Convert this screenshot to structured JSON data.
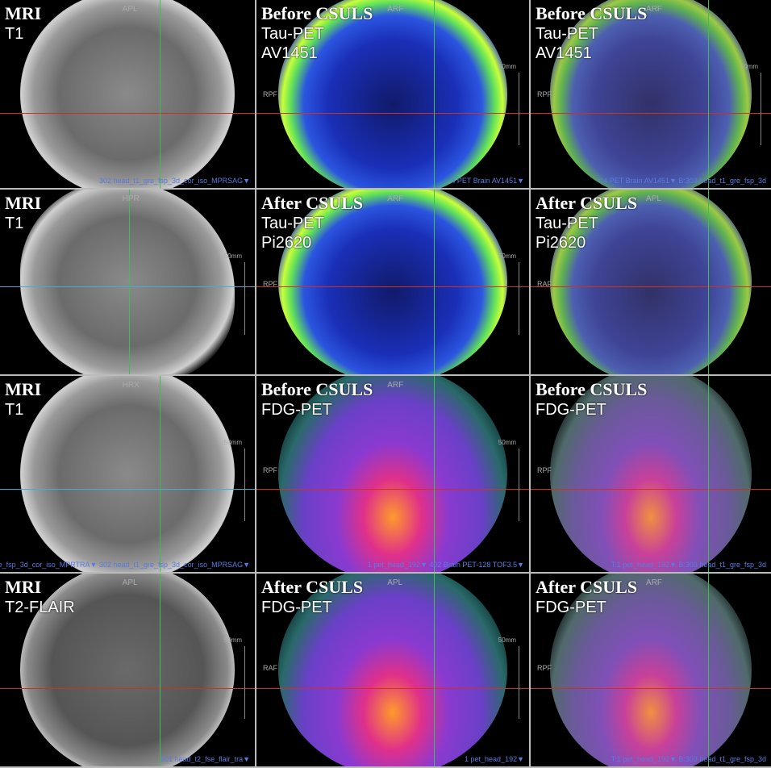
{
  "figure": {
    "rows": [
      {
        "panels": [
          {
            "kind": "mri",
            "title": "MRI",
            "lines": [
              "T1"
            ],
            "orient": "APL",
            "series": "302 head_t1_gre_fsp_3d_cor_iso_MPRSAG▼",
            "hline_color": "#d03020"
          },
          {
            "kind": "tau",
            "title": "Before CSULS",
            "lines": [
              "Tau-PET",
              "AV1451"
            ],
            "orient": "ARF",
            "scale": "50mm",
            "rlab": "RPF",
            "series": "4 PET Brain AV1451▼",
            "hline_color": "#d03020"
          },
          {
            "kind": "tau fuse",
            "title": "Before CSULS",
            "lines": [
              "Tau-PET",
              "AV1451"
            ],
            "orient": "ARF",
            "scale": "50mm",
            "rlab": "RPF",
            "series": "T:4 PET Brain AV1451▼ B:303 head_t1_gre_fsp_3d",
            "hline_color": "#d03020"
          }
        ]
      },
      {
        "panels": [
          {
            "kind": "mri sag",
            "title": "MRI",
            "lines": [
              "T1"
            ],
            "orient": "HPR",
            "scale": "50mm",
            "series": "",
            "hline_color": "#40b0d0"
          },
          {
            "kind": "tau",
            "title": "After CSULS",
            "lines": [
              "Tau-PET",
              "Pi2620"
            ],
            "orient": "ARF",
            "scale": "50mm",
            "rlab": "RPF",
            "series": "",
            "hline_color": "#d03020"
          },
          {
            "kind": "tau fuse",
            "title": "After CSULS",
            "lines": [
              "Tau-PET",
              "Pi2620"
            ],
            "orient": "APL",
            "scale": "",
            "rlab": "RAF",
            "series": "",
            "hline_color": "#d03020"
          }
        ]
      },
      {
        "panels": [
          {
            "kind": "mri",
            "title": "MRI",
            "lines": [
              "T1"
            ],
            "orient": "HRX",
            "scale": "50mm",
            "series": "303 head_t1_gre_fsp_3d_cor_iso_MPRTRA▼ 302 head_t1_gre_fsp_3d_cor_iso_MPRSAG▼",
            "hline_color": "#40b0d0"
          },
          {
            "kind": "fdg",
            "title": "Before CSULS",
            "lines": [
              "FDG-PET"
            ],
            "orient": "ARF",
            "scale": "50mm",
            "rlab": "RPF",
            "series": "1 pet_head_192▼ 402 Brain PET-128 TOF3.5▼",
            "hline_color": "#d03020"
          },
          {
            "kind": "fdg fuse",
            "title": "Before CSULS",
            "lines": [
              "FDG-PET"
            ],
            "orient": "",
            "scale": "",
            "rlab": "RPF",
            "series": "T:1 pet_head_192▼ B:303 head_t1_gre_fsp_3d",
            "hline_color": "#d03020"
          }
        ]
      },
      {
        "panels": [
          {
            "kind": "mri flair",
            "title": "MRI",
            "lines": [
              "T2-FLAIR"
            ],
            "orient": "APL",
            "scale": "50mm",
            "series": "501 head_t2_fse_flair_tra▼",
            "hline_color": "#d03020"
          },
          {
            "kind": "fdg",
            "title": "After CSULS",
            "lines": [
              "FDG-PET"
            ],
            "orient": "APL",
            "scale": "50mm",
            "rlab": "RAF",
            "series": "1 pet_head_192▼",
            "hline_color": "#d03020"
          },
          {
            "kind": "fdg fuse",
            "title": "After CSULS",
            "lines": [
              "FDG-PET"
            ],
            "orient": "ARF",
            "scale": "",
            "rlab": "RPF",
            "series": "T:1 pet_head_192▼ B:303 head_t1_gre_fsp_3d",
            "hline_color": "#d03020"
          }
        ]
      }
    ]
  }
}
